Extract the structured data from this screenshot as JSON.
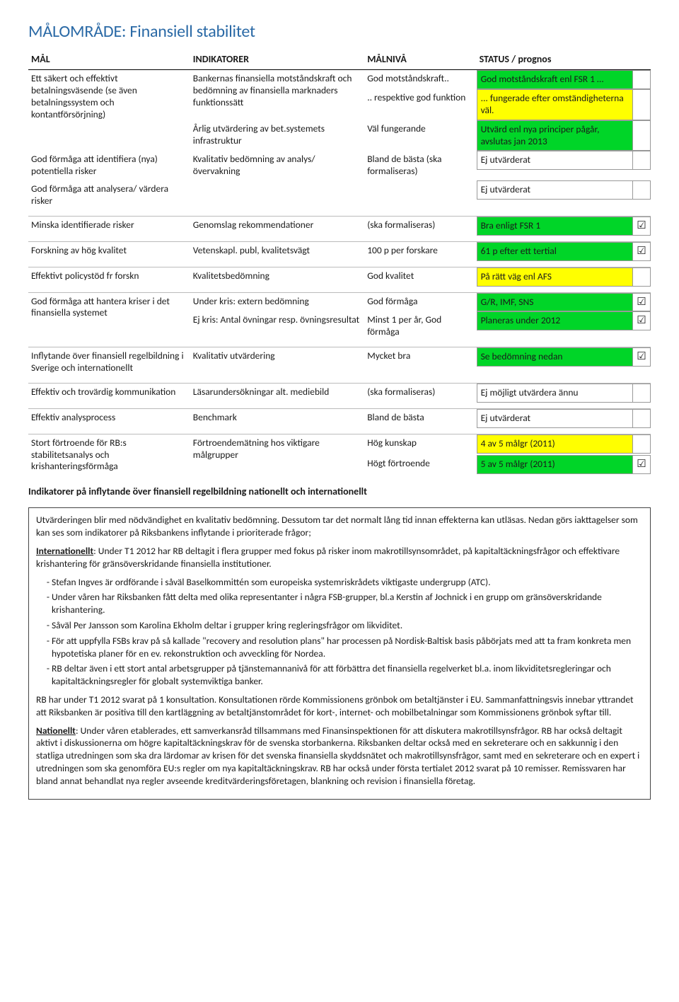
{
  "colors": {
    "green": "#00d528",
    "yellow": "#ffff00",
    "none": "#ffffff",
    "border": "#999999"
  },
  "columnWidths": [
    "26%",
    "28%",
    "18%",
    "28%"
  ],
  "title": "MÅLOMRÅDE: Finansiell stabilitet",
  "headers": [
    "MÅL",
    "INDIKATORER",
    "MÅLNIVÅ",
    "STATUS / prognos"
  ],
  "rows": [
    {
      "goal_rowspan": 3,
      "goal": "Ett säkert och effektivt betalningsväsende (se även betalningssystem och kontantförsörjning)",
      "ind_rowspan": 2,
      "ind": "Bankernas finansiella motståndskraft och bedömning av finansiella marknaders funktionssätt",
      "level": "God motståndskraft..",
      "status": "God motståndskraft enl FSR 1 …",
      "status_color": "green"
    },
    {
      "level": ".. respektive god funktion",
      "status": "... fungerade efter omständigheterna väl.",
      "status_color": "yellow"
    },
    {
      "ind": "Årlig utvärdering av bet.systemets infrastruktur",
      "level": "Väl fungerande",
      "status": "Utvärd enl nya principer pågår, avslutas jan 2013",
      "status_color": "green"
    },
    {
      "goal": "God förmåga att identifiera (nya) potentiella risker",
      "ind_rowspan": 2,
      "ind": "Kvalitativ bedömning av analys/övervakning",
      "level_rowspan": 2,
      "level": "Bland de bästa (ska formaliseras)",
      "status": "Ej utvärderat",
      "status_color": "none"
    },
    {
      "goal": "God förmåga att analysera/ värdera risker",
      "status": "Ej utvärderat",
      "status_color": "none"
    },
    {
      "divider": true
    },
    {
      "goal": "Minska identifierade risker",
      "ind": "Genomslag rekommendationer",
      "level": "(ska formaliseras)",
      "status": "Bra enligt FSR 1",
      "status_color": "green",
      "check": true
    },
    {
      "divider": true
    },
    {
      "goal": "Forskning av hög kvalitet",
      "ind": "Vetenskapl. publ, kvalitetsvägt",
      "level": "100 p per forskare",
      "status": "61 p efter ett tertial",
      "status_color": "green",
      "check": true
    },
    {
      "divider": true
    },
    {
      "goal": "Effektivt policystöd fr forskn",
      "ind": "Kvalitetsbedömning",
      "level": "God kvalitet",
      "status": "På rätt väg enl  AFS",
      "status_color": "yellow"
    },
    {
      "divider": true
    },
    {
      "goal_rowspan": 2,
      "goal": "God förmåga att hantera kriser i det finansiella systemet",
      "ind": "Under kris: extern bedömning",
      "level": "God förmåga",
      "status": "G/R, IMF, SNS",
      "status_color": "green",
      "check": true
    },
    {
      "ind": "Ej kris: Antal övningar resp. övningsresultat",
      "level": "Minst 1 per år, God förmåga",
      "status": "Planeras under 2012",
      "status_color": "green",
      "check": true
    },
    {
      "divider": true
    },
    {
      "goal": "Inflytande över finansiell regelbildning i Sverige och internationellt",
      "ind": "Kvalitativ utvärdering",
      "level": "Mycket bra",
      "status": "Se bedömning nedan",
      "status_color": "green",
      "check": true
    },
    {
      "divider": true
    },
    {
      "goal": "Effektiv och trovärdig kommunikation",
      "ind": "Läsarundersökningar alt. mediebild",
      "level": "(ska formaliseras)",
      "status": "Ej möjligt utvärdera ännu",
      "status_color": "none"
    },
    {
      "divider": true
    },
    {
      "goal": "Effektiv analysprocess",
      "ind": "Benchmark",
      "level": "Bland de bästa",
      "status": "Ej utvärderat",
      "status_color": "none"
    },
    {
      "divider": true
    },
    {
      "goal_rowspan": 2,
      "goal": "Stort förtroende för RB:s stabilitetsanalys och krishanteringsförmåga",
      "ind_rowspan": 2,
      "ind": "Förtroendemätning hos viktigare målgrupper",
      "level": "Hög kunskap",
      "status": "4 av 5 målgr (2011)",
      "status_color": "yellow"
    },
    {
      "level": "Högt förtroende",
      "status": "5 av 5 målgr (2011)",
      "status_color": "green",
      "check": true
    }
  ],
  "notes": {
    "heading": "Indikatorer på inflytande över finansiell regelbildning nationellt och internationellt",
    "intro": "Utvärderingen blir med nödvändighet en kvalitativ bedömning. Dessutom tar det normalt lång tid innan effekterna kan utläsas. Nedan görs iakttagelser som kan ses som indikatorer på Riksbankens inflytande i prioriterade frågor;",
    "intl_lead": "Internationellt",
    "intl_text": ": Under T1 2012 har RB deltagit i flera grupper med fokus på risker inom makrotillsynsområdet, på kapitaltäckningsfrågor och effektivare krishantering för gränsöverskridande finansiella institutioner.",
    "bullets": [
      "Stefan Ingves är ordförande i såväl Baselkommittén som europeiska systemriskrådets viktigaste undergrupp (ATC).",
      "Under våren har Riksbanken fått delta med olika representanter i några FSB-grupper, bl.a Kerstin af Jochnick i en grupp om gränsöverskridande krishantering.",
      "Såväl Per Jansson som Karolina Ekholm deltar i grupper kring regleringsfrågor om likviditet.",
      "För att uppfylla FSBs krav på så kallade \"recovery and resolution plans\" har processen på Nordisk-Baltisk basis påbörjats med att ta fram konkreta men hypotetiska planer för en ev. rekonstruktion och avveckling för Nordea.",
      "RB deltar även i ett stort antal arbetsgrupper på tjänstemannanivå för att förbättra det finansiella regelverket bl.a. inom likviditetsregleringar och kapitaltäckningsregler för globalt systemviktiga banker."
    ],
    "mid_para": "RB har under T1 2012 svarat på 1 konsultation. Konsultationen rörde Kommissionens grönbok om betaltjänster i EU. Sammanfattningsvis innebar yttrandet att Riksbanken är positiva till den kartläggning av betaltjänstområdet för kort-, internet- och mobilbetalningar som Kommissionens grönbok syftar till.",
    "natl_lead": "Nationellt",
    "natl_text": ": Under våren etablerades, ett samverkansråd tillsammans med Finansinspektionen för att diskutera makrotillsynsfrågor. RB har också deltagit aktivt i diskussionerna om högre kapitaltäckningskrav för de svenska storbankerna. Riksbanken deltar också med en sekreterare och en sakkunnig i den statliga utredningen som ska dra lärdomar av krisen för det svenska finansiella skyddsnätet och makrotillsynsfrågor, samt med en sekreterare och en expert i utredningen som ska genomföra EU:s regler om nya kapitaltäckningskrav. RB har också under första tertialet 2012 svarat på 10 remisser. Remissvaren har bland annat behandlat nya regler avseende kreditvärderingsföretagen, blankning och revision i finansiella företag."
  }
}
